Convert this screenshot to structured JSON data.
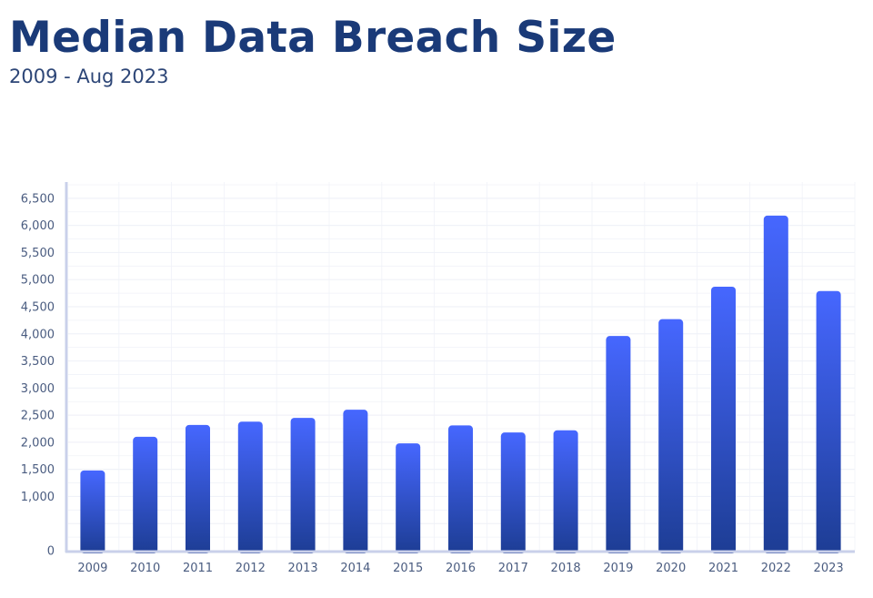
{
  "header": {
    "title": "Median Data Breach Size",
    "subtitle": "2009 - Aug 2023"
  },
  "colors": {
    "title": "#1a3a78",
    "bar_top": "#4667ff",
    "bar_bottom": "#1d3d94",
    "axis": "#c9d0ea",
    "grid": "#f0f2f8"
  },
  "chart_data": {
    "type": "bar",
    "title": "Median Data Breach Size",
    "subtitle": "2009 - Aug 2023",
    "xlabel": "",
    "ylabel": "",
    "categories": [
      "2009",
      "2010",
      "2011",
      "2012",
      "2013",
      "2014",
      "2015",
      "2016",
      "2017",
      "2018",
      "2019",
      "2020",
      "2021",
      "2022",
      "2023"
    ],
    "values": [
      1480,
      2100,
      2320,
      2380,
      2450,
      2600,
      1980,
      2310,
      2180,
      2220,
      3960,
      4270,
      4870,
      6180,
      4790
    ],
    "ylim": [
      0,
      6800
    ],
    "yticks": [
      0,
      1000,
      1500,
      2000,
      2500,
      3000,
      3500,
      4000,
      4500,
      5000,
      5500,
      6000,
      6500
    ],
    "ytick_labels": [
      "0",
      "1,000",
      "1,500",
      "2,000",
      "2,500",
      "3,000",
      "3,500",
      "4,000",
      "4,500",
      "5,000",
      "5,500",
      "6,000",
      "6,500"
    ],
    "grid": true,
    "legend": "none"
  }
}
